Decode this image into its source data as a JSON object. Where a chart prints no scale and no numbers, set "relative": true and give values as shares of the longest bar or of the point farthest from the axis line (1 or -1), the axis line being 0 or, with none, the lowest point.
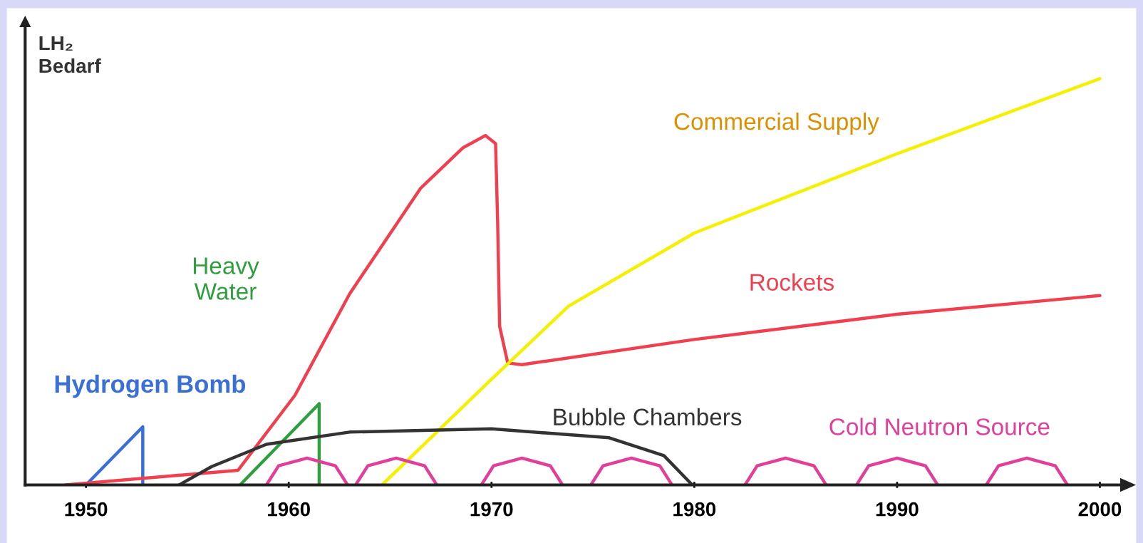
{
  "chart_data": {
    "type": "line",
    "ylabel": "LH₂\nBedarf",
    "relative": true,
    "xlim": [
      1947,
      2001
    ],
    "xticks": [
      1950,
      1960,
      1970,
      1980,
      1990,
      2000
    ],
    "grid": false,
    "legend": false,
    "marker": "none",
    "line_style": "solid",
    "series": [
      {
        "name": "Hydrogen Bomb",
        "color": "#3a6fd8",
        "x": [
          1950,
          1952.8,
          1952.8
        ],
        "values": [
          0,
          0.143,
          0
        ]
      },
      {
        "name": "Heavy\nWater",
        "color": "#2e9e3e",
        "x": [
          1957.6,
          1961.5,
          1961.5
        ],
        "values": [
          0,
          0.2,
          0
        ]
      },
      {
        "name": "Rockets",
        "color": "#f04050",
        "x": [
          1949,
          1957.5,
          1960.3,
          1963,
          1966.5,
          1968.6,
          1969.7,
          1970.2,
          1970.3,
          1970.4,
          1970.8,
          1971.5,
          1980,
          1990,
          2000
        ],
        "values": [
          0,
          0.036,
          0.22,
          0.47,
          0.73,
          0.83,
          0.86,
          0.84,
          0.65,
          0.39,
          0.3,
          0.296,
          0.358,
          0.42,
          0.466
        ]
      },
      {
        "name": "Commercial Supply",
        "color": "#f5f000",
        "x": [
          1964.6,
          1970,
          1973.8,
          1980,
          1990,
          2000
        ],
        "values": [
          0,
          0.26,
          0.44,
          0.62,
          0.815,
          1
        ]
      },
      {
        "name": "Bubble Chambers",
        "color": "#333333",
        "x": [
          1954.6,
          1956.2,
          1958.9,
          1963,
          1970,
          1975.8,
          1978.5,
          1979.9
        ],
        "values": [
          0,
          0.045,
          0.1,
          0.13,
          0.138,
          0.116,
          0.072,
          0
        ]
      },
      {
        "name": "Cold Neutron Source",
        "color": "#e0409a",
        "x": [
          1958.9,
          1959.5,
          1960.9,
          1962.3,
          1962.9,
          null,
          1963.3,
          1963.9,
          1965.3,
          1966.7,
          1967.3,
          null,
          1969.5,
          1970.1,
          1971.5,
          1972.9,
          1973.5,
          null,
          1974.9,
          1975.5,
          1976.9,
          1978.3,
          1978.9,
          null,
          1982.5,
          1983.1,
          1984.5,
          1985.9,
          1986.5,
          null,
          1988,
          1988.6,
          1990,
          1991.4,
          1992,
          null,
          1994.4,
          1995,
          1996.4,
          1997.8,
          1998.4
        ],
        "values": [
          0,
          0.047,
          0.066,
          0.047,
          0,
          null,
          0,
          0.047,
          0.066,
          0.047,
          0,
          null,
          0,
          0.047,
          0.066,
          0.047,
          0,
          null,
          0,
          0.047,
          0.066,
          0.047,
          0,
          null,
          0,
          0.047,
          0.066,
          0.047,
          0,
          null,
          0,
          0.047,
          0.066,
          0.047,
          0,
          null,
          0,
          0.047,
          0.066,
          0.047,
          0
        ]
      }
    ]
  }
}
